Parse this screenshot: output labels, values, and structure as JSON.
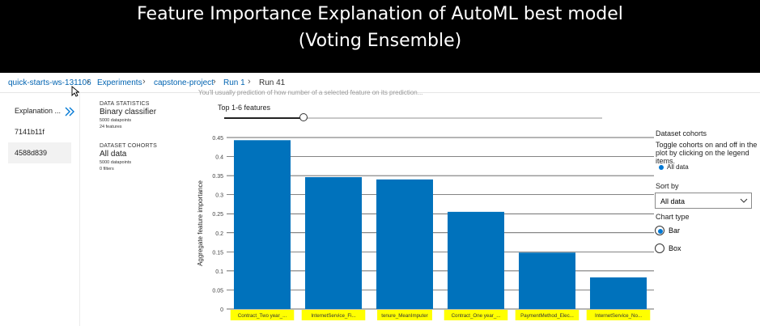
{
  "banner": {
    "line1": "Feature Importance Explanation of AutoML best model",
    "line2": "(Voting Ensemble)"
  },
  "breadcrumb": {
    "items": [
      "quick-starts-ws-131106",
      "Experiments",
      "capstone-project",
      "Run 1",
      "Run 41"
    ]
  },
  "leftnav": {
    "items": [
      "Explanation ...",
      "7141b11f",
      "4588d839"
    ]
  },
  "truncated_text": "You'll usually prediction of how number of a selected feature on its prediction...",
  "data_statistics": {
    "heading": "DATA STATISTICS",
    "model": "Binary classifier",
    "datapoints": "5000 datapoints",
    "features": "24 features"
  },
  "dataset_cohorts": {
    "heading": "DATASET COHORTS",
    "name": "All data",
    "datapoints": "5000 datapoints",
    "filters": "0 filters"
  },
  "slider": {
    "label": "Top 1-6 features",
    "value_fraction": 0.21
  },
  "right_panel": {
    "cohorts_title": "Dataset cohorts",
    "cohorts_help": "Toggle cohorts on and off in the plot by clicking on the legend items.",
    "legend_label": "All data",
    "sort_label": "Sort by",
    "sort_value": "All data",
    "chart_type_label": "Chart type",
    "chart_type_options": [
      "Bar",
      "Box"
    ],
    "chart_type_selected": "Bar"
  },
  "colors": {
    "bar": "#0072bc",
    "highlight": "#ffff00",
    "accent": "#0078d4"
  },
  "chart_data": {
    "type": "bar",
    "ylabel": "Aggregate feature importance",
    "ylim": [
      0,
      0.45
    ],
    "yticks": [
      "0",
      "0.05",
      "0.1",
      "0.15",
      "0.2",
      "0.25",
      "0.3",
      "0.35",
      "0.4",
      "0.45"
    ],
    "categories": [
      "Contract_Two year_...",
      "InternetService_Fi...",
      "tenure_MeanImputer",
      "Contract_One year_...",
      "PaymentMethod_Elec...",
      "InternetService_No..."
    ],
    "values": [
      0.443,
      0.346,
      0.34,
      0.255,
      0.148,
      0.083
    ],
    "grid": true
  }
}
